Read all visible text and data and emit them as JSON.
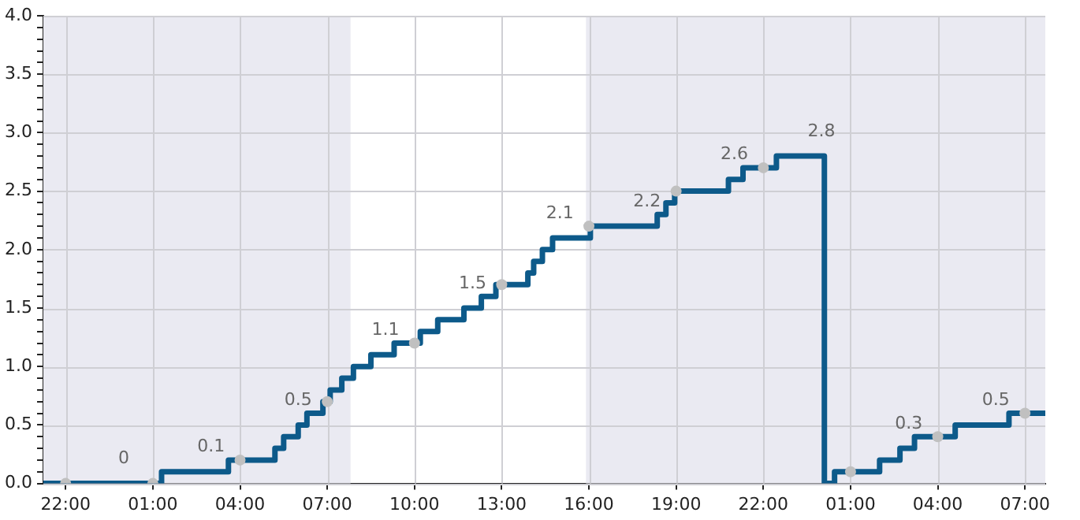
{
  "chart_data": {
    "type": "step",
    "xlim": [
      "2000-01-01T21:14",
      "2000-01-03T07:42"
    ],
    "ylim": [
      0,
      4
    ],
    "xticks": [
      {
        "value": "2000-01-01T22:00",
        "label": "22:00"
      },
      {
        "value": "2000-01-02T01:00",
        "label": "01:00"
      },
      {
        "value": "2000-01-02T04:00",
        "label": "04:00"
      },
      {
        "value": "2000-01-02T07:00",
        "label": "07:00"
      },
      {
        "value": "2000-01-02T10:00",
        "label": "10:00"
      },
      {
        "value": "2000-01-02T13:00",
        "label": "13:00"
      },
      {
        "value": "2000-01-02T16:00",
        "label": "16:00"
      },
      {
        "value": "2000-01-02T19:00",
        "label": "19:00"
      },
      {
        "value": "2000-01-02T22:00",
        "label": "22:00"
      },
      {
        "value": "2000-01-03T01:00",
        "label": "01:00"
      },
      {
        "value": "2000-01-03T04:00",
        "label": "04:00"
      },
      {
        "value": "2000-01-03T07:00",
        "label": "07:00"
      }
    ],
    "yticks": [
      {
        "value": 0,
        "label": "0.0"
      },
      {
        "value": 0.1,
        "label": null
      },
      {
        "value": 0.2,
        "label": null
      },
      {
        "value": 0.3,
        "label": null
      },
      {
        "value": 0.4,
        "label": null
      },
      {
        "value": 0.5,
        "label": "0.5"
      },
      {
        "value": 0.6,
        "label": null
      },
      {
        "value": 0.7,
        "label": null
      },
      {
        "value": 0.8,
        "label": null
      },
      {
        "value": 0.9,
        "label": null
      },
      {
        "value": 1,
        "label": "1.0"
      },
      {
        "value": 1.1,
        "label": null
      },
      {
        "value": 1.2,
        "label": null
      },
      {
        "value": 1.3,
        "label": null
      },
      {
        "value": 1.4,
        "label": null
      },
      {
        "value": 1.5,
        "label": "1.5"
      },
      {
        "value": 1.6,
        "label": null
      },
      {
        "value": 1.7,
        "label": null
      },
      {
        "value": 1.8,
        "label": null
      },
      {
        "value": 1.9,
        "label": null
      },
      {
        "value": 2,
        "label": "2.0"
      },
      {
        "value": 2.1,
        "label": null
      },
      {
        "value": 2.2,
        "label": null
      },
      {
        "value": 2.3,
        "label": null
      },
      {
        "value": 2.4,
        "label": null
      },
      {
        "value": 2.5,
        "label": "2.5"
      },
      {
        "value": 2.6,
        "label": null
      },
      {
        "value": 2.7,
        "label": null
      },
      {
        "value": 2.8,
        "label": null
      },
      {
        "value": 2.9,
        "label": null
      },
      {
        "value": 3,
        "label": "3.0"
      },
      {
        "value": 3.1,
        "label": null
      },
      {
        "value": 3.2,
        "label": null
      },
      {
        "value": 3.3,
        "label": null
      },
      {
        "value": 3.4,
        "label": null
      },
      {
        "value": 3.5,
        "label": "3.5"
      },
      {
        "value": 3.6,
        "label": null
      },
      {
        "value": 3.7,
        "label": null
      },
      {
        "value": 3.8,
        "label": null
      },
      {
        "value": 3.9,
        "label": null
      },
      {
        "value": 4,
        "label": "4.0"
      }
    ],
    "grid": true,
    "bands": [
      {
        "axis": "x",
        "from": "2000-01-01T21:14",
        "to": "2000-01-02T07:48",
        "color": "#eaeaf2"
      },
      {
        "axis": "x",
        "from": "2000-01-02T15:54",
        "to": "2000-01-03T07:42",
        "color": "#eaeaf2"
      }
    ],
    "series": [
      {
        "type": "step",
        "color": "#0d5a8a",
        "marker": "none",
        "x": [
          "2000-01-01T21:14",
          "2000-01-02T01:03",
          "2000-01-02T01:18",
          "2000-01-02T03:36",
          "2000-01-02T04:54",
          "2000-01-02T05:12",
          "2000-01-02T05:30",
          "2000-01-02T06:00",
          "2000-01-02T06:18",
          "2000-01-02T06:51",
          "2000-01-02T07:06",
          "2000-01-02T07:30",
          "2000-01-02T07:54",
          "2000-01-02T08:30",
          "2000-01-02T09:18",
          "2000-01-02T10:12",
          "2000-01-02T10:48",
          "2000-01-02T11:42",
          "2000-01-02T12:18",
          "2000-01-02T12:48",
          "2000-01-02T13:54",
          "2000-01-02T14:06",
          "2000-01-02T14:24",
          "2000-01-02T14:45",
          "2000-01-02T16:03",
          "2000-01-02T18:21",
          "2000-01-02T18:39",
          "2000-01-02T18:57",
          "2000-01-02T20:48",
          "2000-01-02T21:18",
          "2000-01-02T22:27",
          "2000-01-03T00:06",
          "2000-01-03T00:27",
          "2000-01-03T02:00",
          "2000-01-03T02:42",
          "2000-01-03T03:12",
          "2000-01-03T04:36",
          "2000-01-03T06:27",
          "2000-01-03T07:42"
        ],
        "values": [
          0,
          0,
          0.1,
          0.2,
          0.2,
          0.3,
          0.4,
          0.5,
          0.6,
          0.7,
          0.8,
          0.9,
          1.0,
          1.1,
          1.2,
          1.3,
          1.4,
          1.5,
          1.6,
          1.7,
          1.8,
          1.9,
          2.0,
          2.1,
          2.2,
          2.3,
          2.4,
          2.5,
          2.6,
          2.7,
          2.8,
          0,
          0.1,
          0.2,
          0.3,
          0.4,
          0.5,
          0.6,
          0.6
        ]
      },
      {
        "type": "scatter",
        "color": "#c0c0c0",
        "marker": "circle",
        "x": [
          "2000-01-01T22:00",
          "2000-01-02T01:00",
          "2000-01-02T04:00",
          "2000-01-02T07:00",
          "2000-01-02T10:00",
          "2000-01-02T13:00",
          "2000-01-02T16:00",
          "2000-01-02T19:00",
          "2000-01-02T22:00",
          "2000-01-03T01:00",
          "2000-01-03T04:00",
          "2000-01-03T07:00"
        ],
        "values": [
          0,
          0,
          0.2,
          0.7,
          1.2,
          1.7,
          2.2,
          2.5,
          2.7,
          0.1,
          0.4,
          0.6
        ]
      }
    ],
    "annotations": [
      {
        "text": "0",
        "x": "2000-01-02T00:00",
        "y": 0
      },
      {
        "text": "0.1",
        "x": "2000-01-02T03:00",
        "y": 0.1
      },
      {
        "text": "0.5",
        "x": "2000-01-02T06:00",
        "y": 0.5
      },
      {
        "text": "1.1",
        "x": "2000-01-02T09:00",
        "y": 1.1
      },
      {
        "text": "1.5",
        "x": "2000-01-02T12:00",
        "y": 1.5
      },
      {
        "text": "2.1",
        "x": "2000-01-02T15:00",
        "y": 2.1
      },
      {
        "text": "2.2",
        "x": "2000-01-02T18:00",
        "y": 2.2
      },
      {
        "text": "2.6",
        "x": "2000-01-02T21:00",
        "y": 2.6
      },
      {
        "text": "2.8",
        "x": "2000-01-03T00:00",
        "y": 2.8
      },
      {
        "text": "0.3",
        "x": "2000-01-03T03:00",
        "y": 0.3
      },
      {
        "text": "0.5",
        "x": "2000-01-03T06:00",
        "y": 0.5
      }
    ]
  }
}
